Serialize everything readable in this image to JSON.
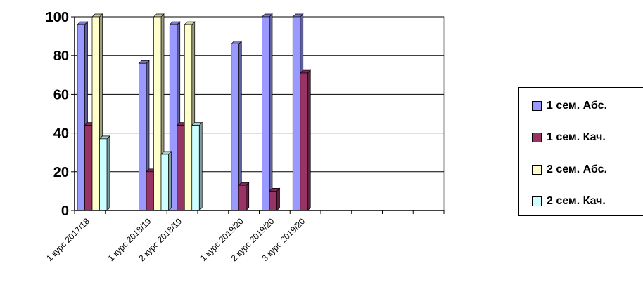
{
  "chart_data": {
    "type": "bar",
    "categories": [
      "1 курс 2017/18",
      "",
      "1 курс 2018/19",
      "2 курс 2018/19",
      "",
      "1 курс 2019/20",
      "2 курс 2019/20",
      "3 курс 2019/20",
      "",
      "",
      "",
      ""
    ],
    "series": [
      {
        "name": "1 сем. Абс.",
        "color": "#9999ff",
        "values": [
          96,
          null,
          76,
          96,
          null,
          86,
          100,
          100,
          null,
          null,
          null,
          null
        ]
      },
      {
        "name": "1 сем. Кач.",
        "color": "#993366",
        "values": [
          44,
          null,
          20,
          44,
          null,
          13,
          10,
          71,
          null,
          null,
          null,
          null
        ]
      },
      {
        "name": "2 сем. Абс.",
        "color": "#ffffcc",
        "values": [
          100,
          null,
          100,
          96,
          null,
          null,
          null,
          null,
          null,
          null,
          null,
          null
        ]
      },
      {
        "name": "2 сем. Кач.",
        "color": "#ccffff",
        "values": [
          37,
          null,
          29,
          44,
          null,
          null,
          null,
          null,
          null,
          null,
          null,
          null
        ]
      }
    ],
    "yticks": [
      "0",
      "20",
      "40",
      "60",
      "80",
      "100"
    ],
    "ylim": [
      0,
      100
    ],
    "grid": true,
    "legend": "right",
    "title": "",
    "xlabel": "",
    "ylabel": ""
  }
}
